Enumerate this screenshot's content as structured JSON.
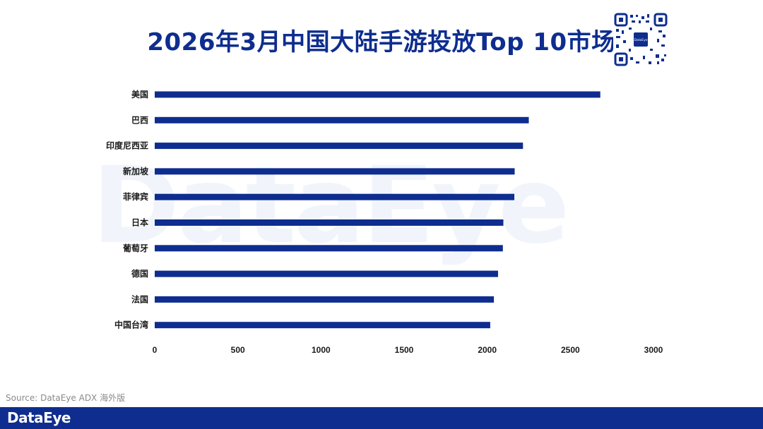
{
  "title": "2026年3月中国大陆手游投放Top 10市场",
  "watermark_text": "DataEye",
  "source": "Source: DataEye ADX 海外版",
  "footer_logo": "DataEye",
  "qr_center_text": "DataEye",
  "colors": {
    "bar": "#0e2d8f",
    "footer": "#0e2d8f",
    "title": "#0e2d8f"
  },
  "chart_data": {
    "type": "bar",
    "orientation": "horizontal",
    "categories": [
      "美国",
      "巴西",
      "印度尼西亚",
      "新加坡",
      "菲律宾",
      "日本",
      "葡萄牙",
      "德国",
      "法国",
      "中国台湾"
    ],
    "values": [
      2680,
      2250,
      2215,
      2165,
      2163,
      2097,
      2094,
      2065,
      2040,
      2018
    ],
    "xlim": [
      0,
      3000
    ],
    "xticks": [
      0,
      500,
      1000,
      1500,
      2000,
      2500,
      3000
    ],
    "xlabel": "",
    "ylabel": "",
    "grid": false,
    "legend": "none"
  }
}
